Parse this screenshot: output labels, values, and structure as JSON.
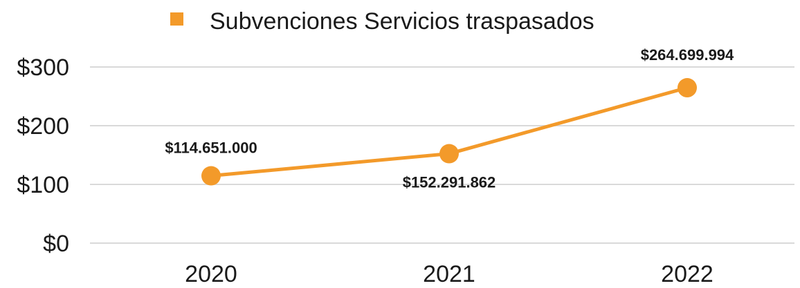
{
  "chart_data": {
    "type": "line",
    "x": [
      "2020",
      "2021",
      "2022"
    ],
    "series": [
      {
        "name": "Subvenciones Servicios traspasados",
        "values": [
          114.651,
          152.291862,
          264.699994
        ],
        "labels": [
          "$114.651.000",
          "$152.291.862",
          "$264.699.994"
        ],
        "color": "#F39A2A"
      }
    ],
    "y_ticks": [
      "$0",
      "$100",
      "$200",
      "$300"
    ],
    "ylim": [
      0,
      300
    ],
    "title": "",
    "xlabel": "",
    "ylabel": "",
    "grid": true,
    "legend": "top"
  }
}
